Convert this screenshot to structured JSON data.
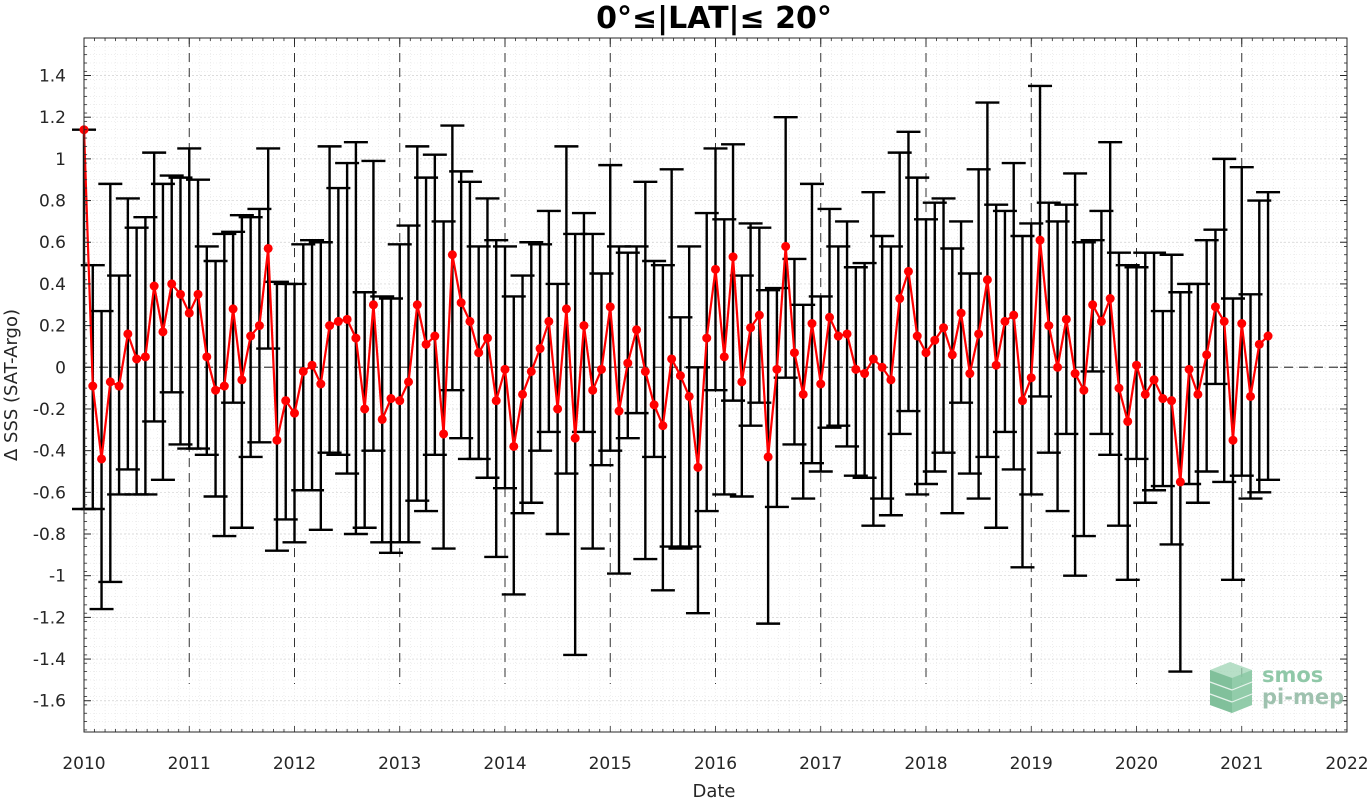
{
  "chart_data": {
    "type": "line",
    "title": "0°≤|LAT|≤ 20°",
    "xlabel": "Date",
    "ylabel": "Δ SSS (SAT-Argo)",
    "xlim": [
      2010,
      2022
    ],
    "ylim": [
      -1.75,
      1.58
    ],
    "x_ticks": [
      "2010",
      "2011",
      "2012",
      "2013",
      "2014",
      "2015",
      "2016",
      "2017",
      "2018",
      "2019",
      "2020",
      "2021",
      "2022"
    ],
    "y_ticks": [
      "-1.6",
      "-1.4",
      "-1.2",
      "-1",
      "-0.8",
      "-0.6",
      "-0.4",
      "-0.2",
      "0",
      "0.2",
      "0.4",
      "0.6",
      "0.8",
      "1",
      "1.2",
      "1.4"
    ],
    "grid": "minor",
    "year_separators": "dashed vertical lines at each year",
    "zero_line": "dashed horizontal line at 0",
    "colors": {
      "mean_line": "#ff0000",
      "error_bars": "#000000",
      "logo": "#7dbf9a"
    },
    "series": [
      {
        "start": "2010-01",
        "step": "1 month",
        "mean": [
          1.14,
          -0.09,
          -0.44,
          -0.07,
          -0.09,
          0.16,
          0.04,
          0.05,
          0.39,
          0.17,
          0.4,
          0.35,
          0.26,
          0.35,
          0.05,
          -0.11,
          -0.09,
          0.28,
          -0.06,
          0.15,
          0.2,
          0.57,
          -0.35,
          -0.16,
          -0.22,
          -0.02,
          0.01,
          -0.08,
          0.2,
          0.22,
          0.23,
          0.14,
          -0.2,
          0.3,
          -0.25,
          -0.15,
          -0.16,
          -0.07,
          0.3,
          0.11,
          0.15,
          -0.32,
          0.54,
          0.31,
          0.22,
          0.07,
          0.14,
          -0.16,
          -0.01,
          -0.38,
          -0.13,
          -0.02,
          0.09,
          0.22,
          -0.2,
          0.28,
          -0.34,
          0.2,
          -0.11,
          -0.01,
          0.29,
          -0.21,
          0.02,
          0.18,
          -0.02,
          -0.18,
          -0.28,
          0.04,
          -0.04,
          -0.14,
          -0.48,
          0.14,
          0.47,
          0.05,
          0.53,
          -0.07,
          0.19,
          0.25,
          -0.43,
          -0.01,
          0.58,
          0.07,
          -0.13,
          0.21,
          -0.08,
          0.24,
          0.15,
          0.16,
          -0.01,
          -0.03,
          0.04,
          0.0,
          -0.06,
          0.33,
          0.46,
          0.15,
          0.07,
          0.13,
          0.19,
          0.06,
          0.26,
          -0.03,
          0.16,
          0.42,
          0.01,
          0.22,
          0.25,
          -0.16,
          -0.05,
          0.61,
          0.2,
          0.0,
          0.23,
          -0.03,
          -0.11,
          0.3,
          0.22,
          0.33,
          -0.1,
          -0.26,
          0.01,
          -0.13,
          -0.06,
          -0.15,
          -0.16,
          -0.55,
          -0.01,
          -0.13,
          0.06,
          0.29,
          0.22,
          -0.35,
          0.21,
          -0.14,
          0.11,
          0.15
        ],
        "upper": [
          1.14,
          0.49,
          0.27,
          0.88,
          0.44,
          0.81,
          0.67,
          0.72,
          1.03,
          0.88,
          0.92,
          0.91,
          1.05,
          0.9,
          0.58,
          0.51,
          0.64,
          0.65,
          0.73,
          0.72,
          0.76,
          1.05,
          0.41,
          0.4,
          0.4,
          0.59,
          0.61,
          0.6,
          1.06,
          0.86,
          0.98,
          1.08,
          0.36,
          0.99,
          0.34,
          0.33,
          0.59,
          0.68,
          1.06,
          0.91,
          1.02,
          0.7,
          1.16,
          0.94,
          0.89,
          0.58,
          0.81,
          0.61,
          0.58,
          0.34,
          0.44,
          0.6,
          0.59,
          0.75,
          0.4,
          1.06,
          0.64,
          0.74,
          0.64,
          0.45,
          0.97,
          0.58,
          0.55,
          0.58,
          0.89,
          0.51,
          0.49,
          0.95,
          0.24,
          0.58,
          0.0,
          0.74,
          1.05,
          0.71,
          1.07,
          0.44,
          0.69,
          0.67,
          0.37,
          0.38,
          1.2,
          0.52,
          0.3,
          0.88,
          0.34,
          0.76,
          0.58,
          0.7,
          0.48,
          0.5,
          0.84,
          0.63,
          0.58,
          1.03,
          1.13,
          0.91,
          0.71,
          0.79,
          0.81,
          0.57,
          0.7,
          0.45,
          0.95,
          1.27,
          0.78,
          0.75,
          0.98,
          0.63,
          0.69,
          1.35,
          0.79,
          0.7,
          0.78,
          0.93,
          0.6,
          0.61,
          0.75,
          1.08,
          0.55,
          0.49,
          0.48,
          0.55,
          0.55,
          0.27,
          0.54,
          0.36,
          0.4,
          0.4,
          0.61,
          0.66,
          1.0,
          0.33,
          0.96,
          0.35,
          0.8,
          0.84
        ],
        "lower": [
          -0.68,
          -0.68,
          -1.16,
          -1.03,
          -0.61,
          -0.49,
          -0.61,
          -0.61,
          -0.26,
          -0.54,
          -0.12,
          -0.37,
          -0.39,
          -0.39,
          -0.42,
          -0.62,
          -0.81,
          -0.17,
          -0.77,
          -0.43,
          -0.36,
          0.09,
          -0.88,
          -0.73,
          -0.84,
          -0.59,
          -0.59,
          -0.78,
          -0.41,
          -0.42,
          -0.51,
          -0.8,
          -0.77,
          -0.4,
          -0.84,
          -0.89,
          -0.84,
          -0.84,
          -0.64,
          -0.69,
          -0.42,
          -0.87,
          -0.11,
          -0.34,
          -0.44,
          -0.44,
          -0.53,
          -0.91,
          -0.58,
          -1.09,
          -0.7,
          -0.65,
          -0.4,
          -0.31,
          -0.8,
          -0.51,
          -1.38,
          -0.31,
          -0.87,
          -0.47,
          -0.4,
          -0.99,
          -0.34,
          -0.22,
          -0.92,
          -0.43,
          -1.07,
          -0.86,
          -0.87,
          -0.86,
          -1.18,
          -0.69,
          -0.11,
          -0.61,
          -0.16,
          -0.62,
          -0.28,
          -0.17,
          -1.23,
          -0.67,
          -0.05,
          -0.37,
          -0.63,
          -0.46,
          -0.5,
          -0.29,
          -0.28,
          -0.38,
          -0.52,
          -0.53,
          -0.76,
          -0.63,
          -0.71,
          -0.32,
          -0.21,
          -0.61,
          -0.56,
          -0.5,
          -0.41,
          -0.7,
          -0.17,
          -0.51,
          -0.63,
          -0.43,
          -0.77,
          -0.31,
          -0.49,
          -0.96,
          -0.61,
          -0.14,
          -0.41,
          -0.69,
          -0.32,
          -1.0,
          -0.81,
          -0.02,
          -0.32,
          -0.42,
          -0.76,
          -1.02,
          -0.44,
          -0.65,
          -0.59,
          -0.57,
          -0.85,
          -1.46,
          -0.56,
          -0.65,
          -0.5,
          -0.08,
          -0.55,
          -1.02,
          -0.52,
          -0.63,
          -0.6,
          -0.54
        ]
      }
    ],
    "logo": {
      "line1": "smos",
      "line2": "pi-mep"
    }
  }
}
